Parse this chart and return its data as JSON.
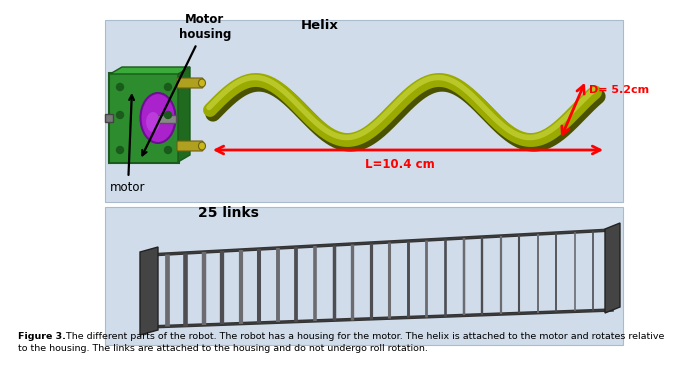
{
  "background_color": "#ffffff",
  "panel_bg": "#d0dcea",
  "caption_bold": "Figure 3.",
  "caption_line1": " The different parts of the robot. The robot has a housing for the motor. The helix is attached to the motor and rotates relative",
  "caption_line2": "to the housing. The links are attached to the housing and do not undergo roll rotation.",
  "label_motor_housing": "Motor\nhousing",
  "label_helix": "Helix",
  "label_motor": "motor",
  "label_25links": "25 links",
  "label_D": "D= 5.2cm",
  "label_L": "L=10.4 cm",
  "helix_color_main": "#9aaa00",
  "helix_color_dark": "#4a5200",
  "helix_color_light": "#ccd840",
  "arrow_color": "#ff0000",
  "green_color": "#2d8c2d",
  "purple_color": "#aa22cc",
  "rod_color": "#b0a020",
  "link_color": "#444444",
  "link_color_light": "#666666"
}
